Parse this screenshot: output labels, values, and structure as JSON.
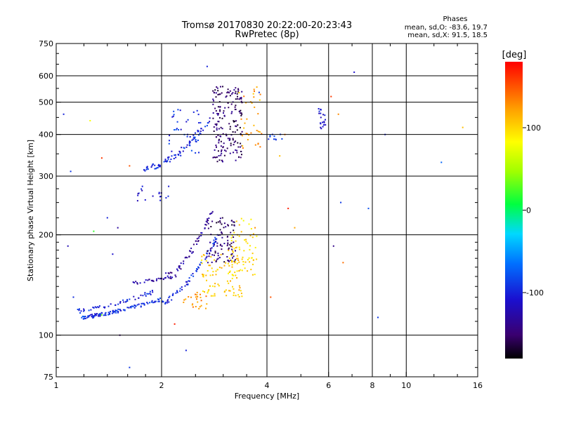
{
  "chart_data": {
    "type": "scatter",
    "title": "Tromsø 20170830 20:22:00-20:23:43",
    "subtitle": "RwPretec (8p)",
    "phases": {
      "heading": "Phases",
      "line_o": "mean, sd,O: -83.6, 19.7",
      "line_x": "mean, sd,X: 91.5, 18.5"
    },
    "xlabel": "Frequency [MHz]",
    "ylabel": "Stationary phase Virtual Height [km]",
    "xscale": "log",
    "yscale": "log",
    "xlim": [
      1,
      16
    ],
    "ylim": [
      75,
      750
    ],
    "x_ticks": [
      {
        "value": 1,
        "label": "1"
      },
      {
        "value": 2,
        "label": "2"
      },
      {
        "value": 4,
        "label": "4"
      },
      {
        "value": 6,
        "label": "6"
      },
      {
        "value": 8,
        "label": "8"
      },
      {
        "value": 10,
        "label": "10"
      },
      {
        "value": 16,
        "label": "16"
      }
    ],
    "y_ticks": [
      {
        "value": 75,
        "label": "75"
      },
      {
        "value": 100,
        "label": "100"
      },
      {
        "value": 200,
        "label": "200"
      },
      {
        "value": 300,
        "label": "300"
      },
      {
        "value": 400,
        "label": "400"
      },
      {
        "value": 500,
        "label": "500"
      },
      {
        "value": 600,
        "label": "600"
      },
      {
        "value": 750,
        "label": "750"
      }
    ],
    "x_grid": [
      2,
      4,
      6,
      8,
      10
    ],
    "y_grid": [
      100,
      200,
      300,
      400,
      500,
      600
    ],
    "colorbar": {
      "label": "[deg]",
      "range": [
        -180,
        180
      ],
      "ticks": [
        {
          "value": 100,
          "label": "100"
        },
        {
          "value": 0,
          "label": "0"
        },
        {
          "value": -100,
          "label": "-100"
        }
      ]
    },
    "clusters": [
      {
        "kind": "curve",
        "from": [
          1.18,
          113
        ],
        "to": [
          2.0,
          128
        ],
        "power": 1.3,
        "n": 110,
        "jit": 0.012,
        "phase": -95
      },
      {
        "kind": "curve",
        "from": [
          1.15,
          118
        ],
        "to": [
          1.9,
          135
        ],
        "power": 1.3,
        "n": 50,
        "jit": 0.014,
        "phase": -100
      },
      {
        "kind": "curve",
        "from": [
          1.65,
          143
        ],
        "to": [
          2.2,
          150
        ],
        "power": 1.0,
        "n": 30,
        "jit": 0.01,
        "phase": -130
      },
      {
        "kind": "curve",
        "from": [
          2.0,
          126
        ],
        "to": [
          2.9,
          200
        ],
        "power": 1.6,
        "n": 70,
        "jit": 0.02,
        "phase": -100
      },
      {
        "kind": "curve",
        "from": [
          2.05,
          150
        ],
        "to": [
          2.8,
          235
        ],
        "power": 1.6,
        "n": 55,
        "jit": 0.025,
        "phase": -130
      },
      {
        "kind": "box",
        "x": [
          2.7,
          3.25
        ],
        "y": [
          165,
          225
        ],
        "n": 90,
        "phase": -150
      },
      {
        "kind": "box",
        "x": [
          2.3,
          2.7
        ],
        "y": [
          120,
          135
        ],
        "n": 25,
        "phase": 130
      },
      {
        "kind": "box",
        "x": [
          2.6,
          3.4
        ],
        "y": [
          130,
          175
        ],
        "n": 90,
        "phase": 105
      },
      {
        "kind": "box",
        "x": [
          3.1,
          3.7
        ],
        "y": [
          150,
          200
        ],
        "n": 40,
        "phase": 100
      },
      {
        "kind": "box",
        "x": [
          3.2,
          3.75
        ],
        "y": [
          165,
          225
        ],
        "n": 25,
        "phase": 95
      },
      {
        "kind": "curve",
        "from": [
          1.78,
          316
        ],
        "to": [
          2.75,
          440
        ],
        "power": 1.7,
        "n": 70,
        "jit": 0.02,
        "phase": -100
      },
      {
        "kind": "box",
        "x": [
          2.1,
          2.6
        ],
        "y": [
          345,
          480
        ],
        "n": 45,
        "phase": -95
      },
      {
        "kind": "box",
        "x": [
          2.8,
          3.4
        ],
        "y": [
          330,
          560
        ],
        "n": 180,
        "phase": -150
      },
      {
        "kind": "box",
        "x": [
          3.3,
          3.9
        ],
        "y": [
          360,
          560
        ],
        "n": 35,
        "phase": 120
      },
      {
        "kind": "box",
        "x": [
          1.7,
          2.1
        ],
        "y": [
          250,
          280
        ],
        "n": 18,
        "phase": -110
      },
      {
        "kind": "box",
        "x": [
          5.6,
          5.9
        ],
        "y": [
          415,
          480
        ],
        "n": 20,
        "phase": -105
      },
      {
        "kind": "box",
        "x": [
          4.0,
          4.6
        ],
        "y": [
          385,
          410
        ],
        "n": 10,
        "phase": -80
      }
    ],
    "outliers": [
      [
        1.05,
        460,
        -100
      ],
      [
        1.1,
        310,
        -90
      ],
      [
        1.08,
        185,
        -120
      ],
      [
        1.12,
        130,
        -95
      ],
      [
        1.28,
        205,
        20
      ],
      [
        1.35,
        115,
        30
      ],
      [
        1.5,
        210,
        -130
      ],
      [
        1.45,
        175,
        -110
      ],
      [
        1.62,
        80,
        -90
      ],
      [
        1.35,
        340,
        160
      ],
      [
        1.62,
        322,
        150
      ],
      [
        1.52,
        100,
        -150
      ],
      [
        2.35,
        90,
        -100
      ],
      [
        2.18,
        108,
        170
      ],
      [
        2.7,
        640,
        -100
      ],
      [
        7.1,
        615,
        -110
      ],
      [
        6.5,
        250,
        -90
      ],
      [
        7.8,
        240,
        -80
      ],
      [
        8.7,
        400,
        -100
      ],
      [
        12.6,
        330,
        -70
      ],
      [
        14.5,
        420,
        110
      ],
      [
        6.2,
        185,
        -140
      ],
      [
        6.6,
        165,
        140
      ],
      [
        6.4,
        460,
        130
      ],
      [
        8.3,
        113,
        -90
      ],
      [
        4.6,
        240,
        170
      ],
      [
        4.8,
        210,
        120
      ],
      [
        3.7,
        210,
        130
      ],
      [
        4.1,
        130,
        150
      ],
      [
        4.5,
        400,
        140
      ],
      [
        4.35,
        345,
        110
      ],
      [
        6.1,
        520,
        160
      ],
      [
        3.8,
        535,
        -90
      ],
      [
        1.4,
        225,
        -100
      ],
      [
        1.25,
        440,
        80
      ]
    ]
  }
}
